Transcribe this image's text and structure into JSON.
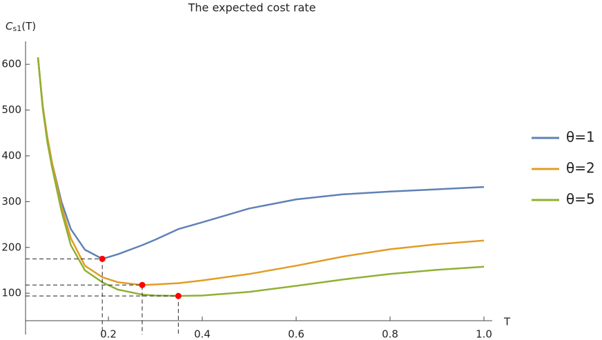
{
  "chart_data": {
    "type": "line",
    "title": "The expected cost rate",
    "y_label": [
      "C",
      "s1",
      "(T)"
    ],
    "x_label": "T",
    "x": [
      0.05,
      0.06,
      0.07,
      0.08,
      0.1,
      0.12,
      0.15,
      0.187,
      0.22,
      0.272,
      0.3,
      0.349,
      0.4,
      0.5,
      0.6,
      0.7,
      0.8,
      0.9,
      1.0
    ],
    "series": [
      {
        "name": "θ=1",
        "color": "#5e81b5",
        "values": [
          615,
          510,
          440,
          385,
          300,
          240,
          195,
          175,
          185,
          205,
          217,
          240,
          255,
          285,
          305,
          316,
          322,
          327,
          332
        ]
      },
      {
        "name": "θ=2",
        "color": "#e19c24",
        "values": [
          615,
          510,
          440,
          385,
          290,
          220,
          160,
          135,
          124,
          118,
          119,
          122,
          128,
          142,
          160,
          180,
          196,
          207,
          215
        ]
      },
      {
        "name": "θ=5",
        "color": "#8fb032",
        "values": [
          615,
          505,
          430,
          375,
          280,
          205,
          150,
          124,
          108,
          97,
          95,
          94,
          95,
          103,
          116,
          130,
          142,
          151,
          158
        ]
      }
    ],
    "minima": [
      {
        "x": 0.187,
        "y": 175
      },
      {
        "x": 0.272,
        "y": 118
      },
      {
        "x": 0.349,
        "y": 94
      }
    ],
    "marker_color": "#ff0000",
    "xlim": [
      0.0235,
      1.0
    ],
    "ylim": [
      40,
      650
    ],
    "xticks": [
      0.2,
      0.4,
      0.6,
      0.8,
      {
        "value": 1.0,
        "label": "1.0"
      }
    ],
    "yticks": [
      100,
      200,
      300,
      400,
      500,
      600
    ],
    "legend": "right"
  }
}
